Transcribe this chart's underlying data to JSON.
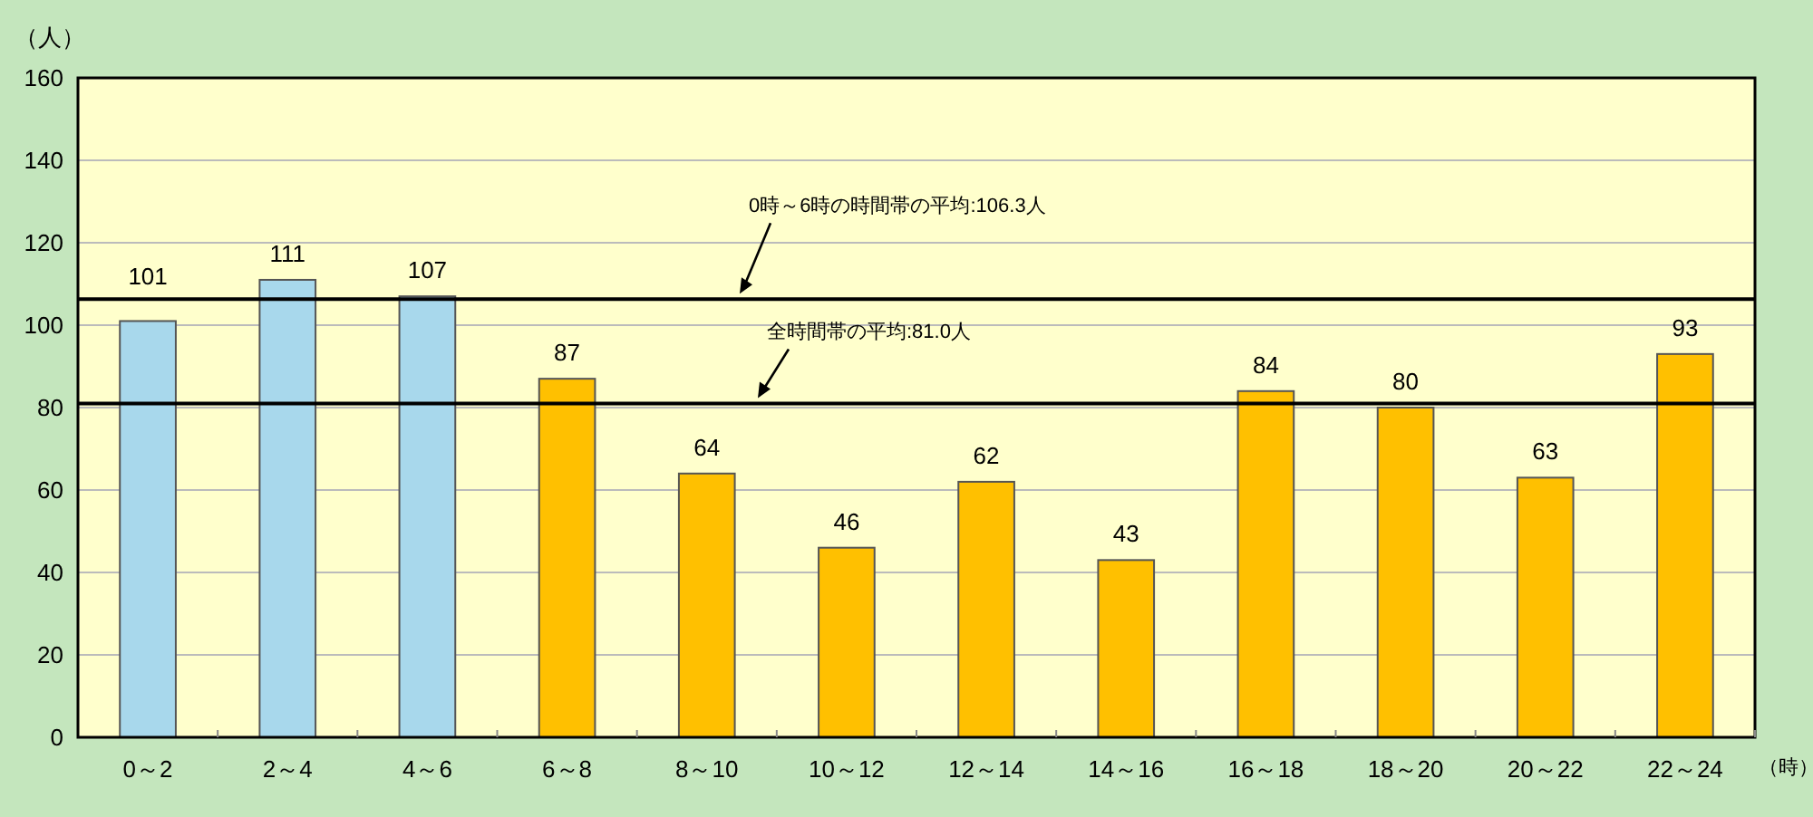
{
  "chart_data": {
    "type": "bar",
    "ylabel": "（人）",
    "xlabel": "（時）",
    "categories": [
      "0～2",
      "2～4",
      "4～6",
      "6～8",
      "8～10",
      "10～12",
      "12～14",
      "14～16",
      "16～18",
      "18～20",
      "20～22",
      "22～24"
    ],
    "values": [
      101,
      111,
      107,
      87,
      64,
      46,
      62,
      43,
      84,
      80,
      63,
      93
    ],
    "colors": [
      "#a8d8ec",
      "#a8d8ec",
      "#a8d8ec",
      "#ffc000",
      "#ffc000",
      "#ffc000",
      "#ffc000",
      "#ffc000",
      "#ffc000",
      "#ffc000",
      "#ffc000",
      "#ffc000"
    ],
    "ylim": [
      0,
      160
    ],
    "yticks": [
      0,
      20,
      40,
      60,
      80,
      100,
      120,
      140,
      160
    ],
    "grid": "y",
    "data_labels": true,
    "ref_lines": [
      {
        "axis": "y",
        "value": 106.3,
        "label": "0時～6時の時間帯の平均:106.3人",
        "color": "#000000"
      },
      {
        "axis": "y",
        "value": 81.0,
        "label": "全時間帯の平均:81.0人",
        "color": "#000000"
      }
    ]
  }
}
